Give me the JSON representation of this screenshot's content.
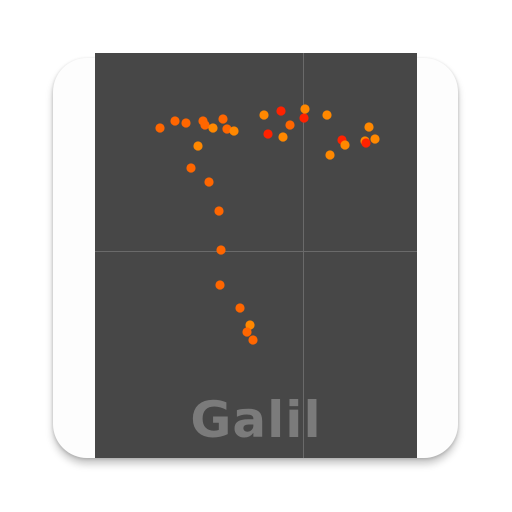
{
  "app": {
    "name": "Galil"
  },
  "colors": {
    "card_background": "#fdfdfd",
    "panel_background": "#474747",
    "crosshair": "#6a6a6a",
    "brand_text": "#7b7b7b",
    "dot_orange": "#ff8800",
    "dot_dark_orange": "#ff6600",
    "dot_red": "#ff2200"
  },
  "icon": {
    "semantic": "app-launcher-icon",
    "graphic": "scatter-trace-icon"
  }
}
